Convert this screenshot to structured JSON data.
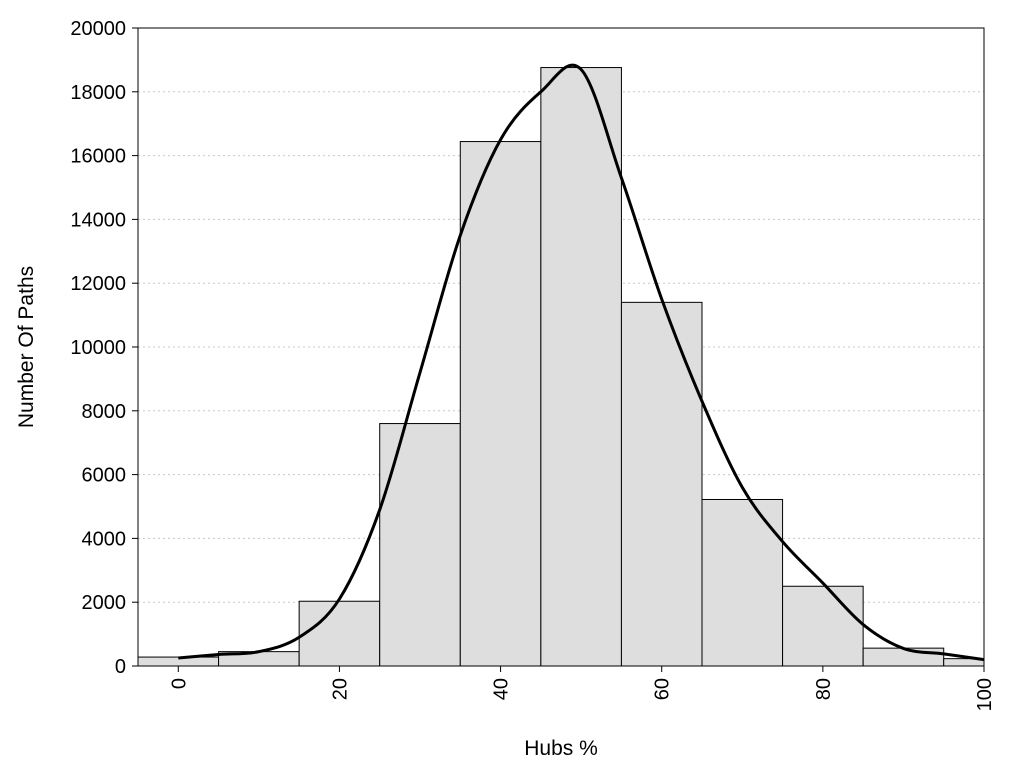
{
  "chart_data": {
    "type": "bar",
    "title": "",
    "xlabel": "Hubs %",
    "ylabel": "Number Of Paths",
    "xlim": [
      -5,
      100
    ],
    "ylim": [
      0,
      20000
    ],
    "x_ticks": [
      0,
      20,
      40,
      60,
      80,
      100
    ],
    "y_ticks": [
      0,
      2000,
      4000,
      6000,
      8000,
      10000,
      12000,
      14000,
      16000,
      18000,
      20000
    ],
    "grid": "horizontal dotted",
    "bin_width": 10,
    "bins": [
      {
        "center": 0,
        "value": 280
      },
      {
        "center": 10,
        "value": 450
      },
      {
        "center": 20,
        "value": 2030
      },
      {
        "center": 30,
        "value": 7600
      },
      {
        "center": 40,
        "value": 16440
      },
      {
        "center": 50,
        "value": 18760
      },
      {
        "center": 60,
        "value": 11400
      },
      {
        "center": 70,
        "value": 5220
      },
      {
        "center": 80,
        "value": 2500
      },
      {
        "center": 90,
        "value": 560
      },
      {
        "center": 100,
        "value": 230
      }
    ],
    "density_curve": {
      "x": [
        0,
        5,
        10,
        15,
        20,
        25,
        30,
        35,
        40,
        45,
        50,
        55,
        60,
        65,
        70,
        75,
        80,
        85,
        90,
        95,
        100
      ],
      "y": [
        250,
        360,
        450,
        900,
        2100,
        4900,
        9200,
        13500,
        16500,
        18000,
        18700,
        15300,
        11500,
        8300,
        5600,
        3900,
        2600,
        1300,
        550,
        380,
        200
      ]
    },
    "colors": {
      "bar_fill": "#dedede",
      "bar_edge": "#000000",
      "curve": "#000000"
    }
  }
}
